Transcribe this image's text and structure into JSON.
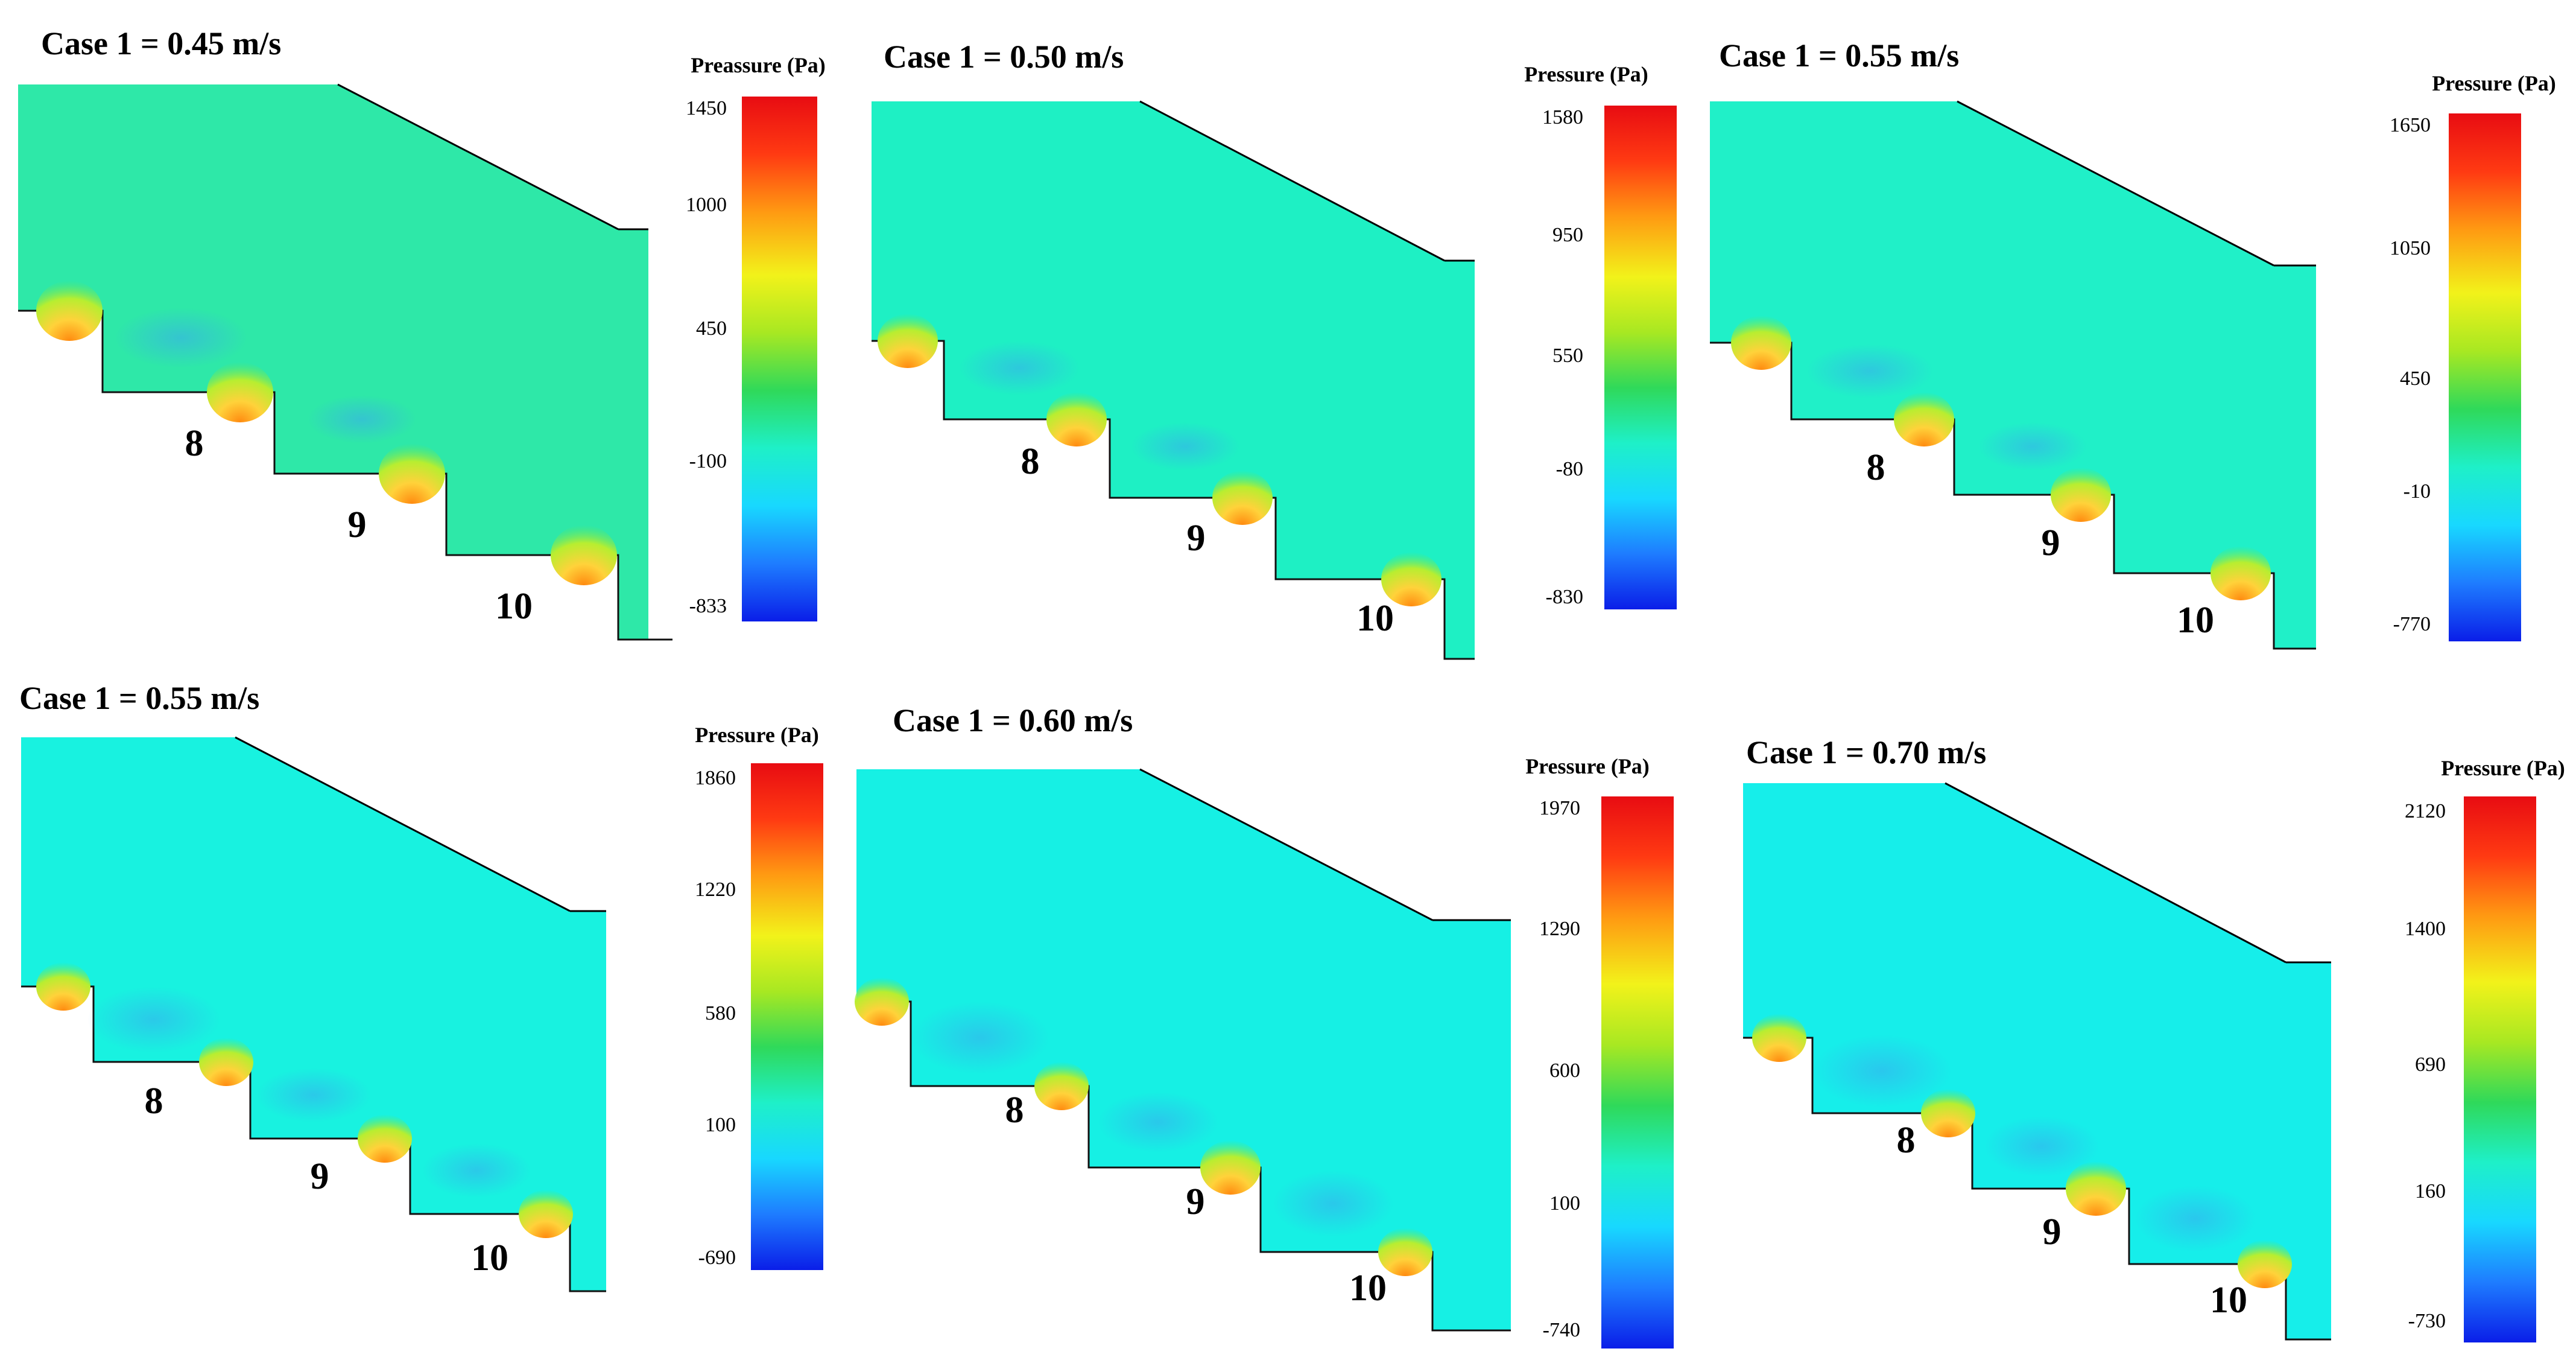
{
  "figure": {
    "panels": [
      {
        "title": "Case 1 = 0.45 m/s",
        "colorbar": {
          "title": "Preassure (Pa)",
          "ticks": [
            "1450",
            "1000",
            "450",
            "-100",
            "-833"
          ]
        },
        "step_labels": [
          "8",
          "9",
          "10"
        ],
        "background": "#2ee8a8"
      },
      {
        "title": "Case 1 = 0.50 m/s",
        "colorbar": {
          "title": "Pressure (Pa)",
          "ticks": [
            "1580",
            "950",
            "550",
            "-80",
            "-830"
          ]
        },
        "step_labels": [
          "8",
          "9",
          "10"
        ],
        "background": "#1ef0c4"
      },
      {
        "title": "Case 1 = 0.55 m/s",
        "colorbar": {
          "title": "Pressure (Pa)",
          "ticks": [
            "1650",
            "1050",
            "450",
            "-10",
            "-770"
          ]
        },
        "step_labels": [
          "8",
          "9",
          "10"
        ],
        "background": "#20f0c8"
      },
      {
        "title": "Case 1 = 0.55 m/s",
        "colorbar": {
          "title": "Pressure (Pa)",
          "ticks": [
            "1860",
            "1220",
            "580",
            "100",
            "-690"
          ]
        },
        "step_labels": [
          "8",
          "9",
          "10"
        ],
        "background": "#18f2e0"
      },
      {
        "title": "Case 1 = 0.60 m/s",
        "colorbar": {
          "title": "Pressure (Pa)",
          "ticks": [
            "1970",
            "1290",
            "600",
            "100",
            "-740"
          ]
        },
        "step_labels": [
          "8",
          "9",
          "10"
        ],
        "background": "#16f0e4"
      },
      {
        "title": "Case 1 = 0.70 m/s",
        "colorbar": {
          "title": "Pressure (Pa)",
          "ticks": [
            "2120",
            "1400",
            "690",
            "160",
            "-730"
          ]
        },
        "step_labels": [
          "8",
          "9",
          "10"
        ],
        "background": "#16eeea"
      }
    ],
    "colors": {
      "jet": [
        "#0a1ee8",
        "#1e7cff",
        "#18d8ff",
        "#1ef0c8",
        "#2fd95a",
        "#a8e822",
        "#f2f21a",
        "#ff9a12",
        "#ff3a12",
        "#e80c12"
      ],
      "hotspot": "#ffd23a"
    }
  }
}
